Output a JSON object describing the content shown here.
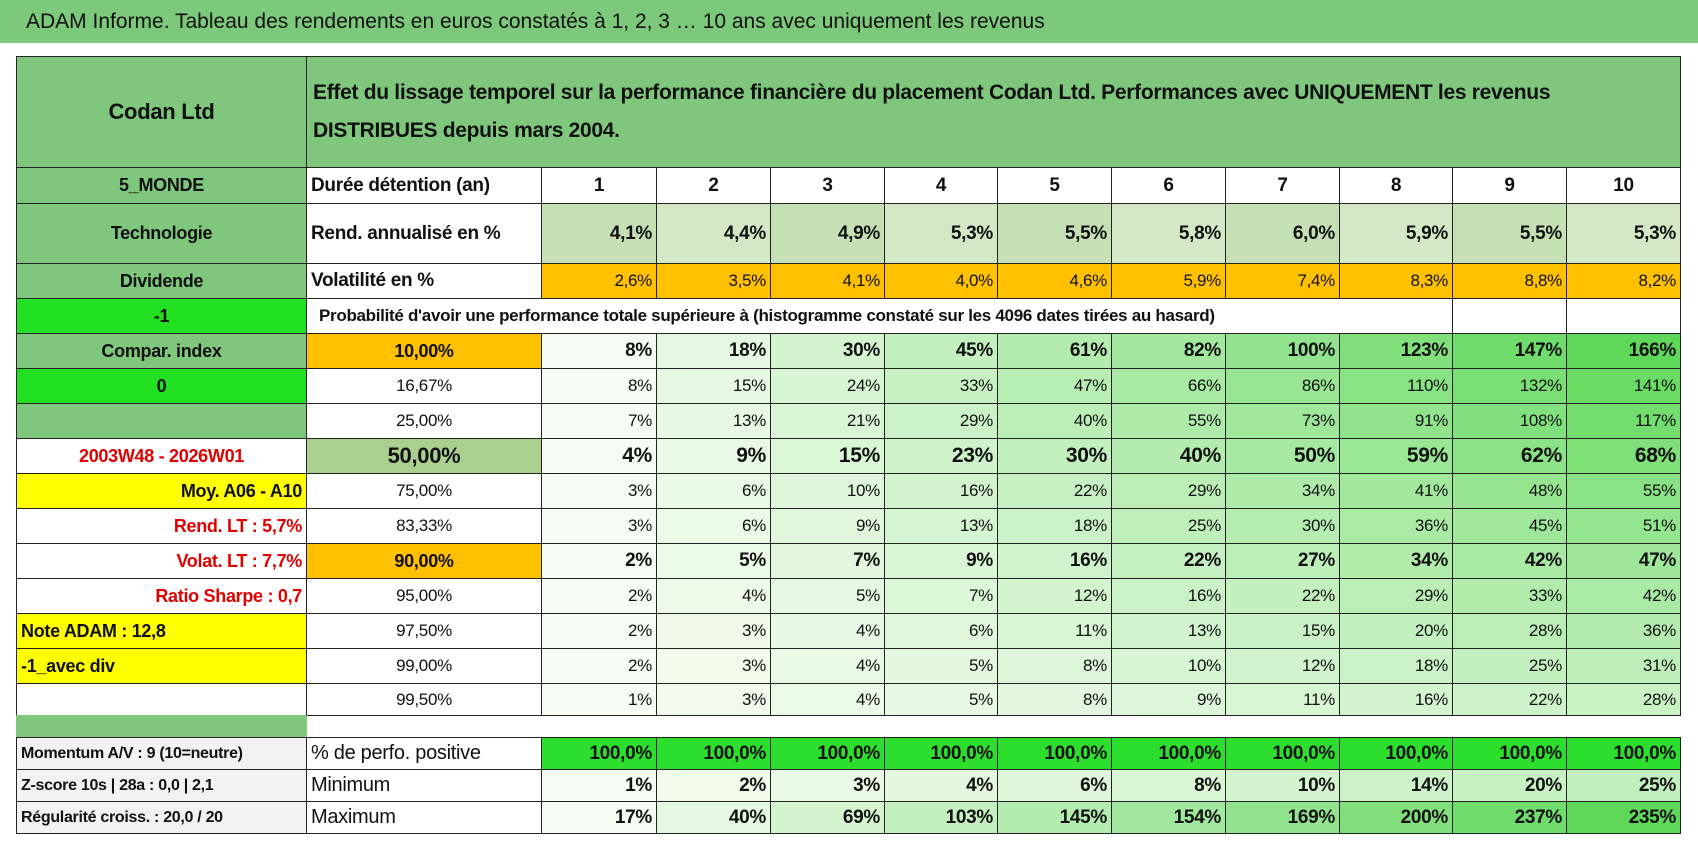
{
  "header": {
    "title": "ADAM Informe. Tableau des rendements en euros constatés à 1, 2, 3 … 10 ans avec uniquement les revenus"
  },
  "table": {
    "name": "Codan Ltd",
    "description": "Effet du lissage temporel sur la performance financière du placement Codan Ltd. Performances avec UNIQUEMENT les revenus DISTRIBUES depuis mars 2004.",
    "rows": [
      {
        "label": "5_MONDE",
        "head": "Durée détention (an)",
        "cells": [
          1,
          2,
          3,
          4,
          5,
          6,
          7,
          8,
          9,
          10
        ]
      },
      {
        "label": "Technologie",
        "head": "Rend. annualisé en %",
        "cells": [
          "4,1%",
          "4,4%",
          "4,9%",
          "5,3%",
          "5,5%",
          "5,8%",
          "6,0%",
          "5,9%",
          "5,5%",
          "5,3%"
        ]
      },
      {
        "label": "Dividende",
        "head": "Volatilité en %",
        "cells": [
          "2,6%",
          "3,5%",
          "4,1%",
          "4,0%",
          "4,6%",
          "5,9%",
          "7,4%",
          "8,3%",
          "8,8%",
          "8,2%"
        ]
      },
      {
        "label": "-1",
        "note": "Probabilité d'avoir une performance totale supérieure à (histogramme constaté sur les 4096 dates tirées au hasard)"
      },
      {
        "label": "Compar. index",
        "head": "10,00%",
        "cells": [
          "8%",
          "18%",
          "30%",
          "45%",
          "61%",
          "82%",
          "100%",
          "123%",
          "147%",
          "166%"
        ]
      },
      {
        "label": "0",
        "head": "16,67%",
        "cells": [
          "8%",
          "15%",
          "24%",
          "33%",
          "47%",
          "66%",
          "86%",
          "110%",
          "132%",
          "141%"
        ]
      },
      {
        "head": "25,00%",
        "cells": [
          "7%",
          "13%",
          "21%",
          "29%",
          "40%",
          "55%",
          "73%",
          "91%",
          "108%",
          "117%"
        ]
      },
      {
        "label": "2003W48 - 2026W01",
        "head": "50,00%",
        "cells": [
          "4%",
          "9%",
          "15%",
          "23%",
          "30%",
          "40%",
          "50%",
          "59%",
          "62%",
          "68%"
        ]
      },
      {
        "label": "Moy. A06 - A10",
        "head": "75,00%",
        "cells": [
          "3%",
          "6%",
          "10%",
          "16%",
          "22%",
          "29%",
          "34%",
          "41%",
          "48%",
          "55%"
        ]
      },
      {
        "label": "Rend. LT :   5,7%",
        "head": "83,33%",
        "cells": [
          "3%",
          "6%",
          "9%",
          "13%",
          "18%",
          "25%",
          "30%",
          "36%",
          "45%",
          "51%"
        ]
      },
      {
        "label": "Volat. LT :   7,7%",
        "head": "90,00%",
        "cells": [
          "2%",
          "5%",
          "7%",
          "9%",
          "16%",
          "22%",
          "27%",
          "34%",
          "42%",
          "47%"
        ]
      },
      {
        "label": "Ratio Sharpe :    0,7",
        "head": "95,00%",
        "cells": [
          "2%",
          "4%",
          "5%",
          "7%",
          "12%",
          "16%",
          "22%",
          "29%",
          "33%",
          "42%"
        ]
      },
      {
        "label": "Note ADAM : 12,8",
        "head": "97,50%",
        "cells": [
          "2%",
          "3%",
          "4%",
          "6%",
          "11%",
          "13%",
          "15%",
          "20%",
          "28%",
          "36%"
        ]
      },
      {
        "label": "-1_avec div",
        "head": "99,00%",
        "cells": [
          "2%",
          "3%",
          "4%",
          "5%",
          "8%",
          "10%",
          "12%",
          "18%",
          "25%",
          "31%"
        ]
      },
      {
        "head": "99,50%",
        "cells": [
          "1%",
          "3%",
          "4%",
          "5%",
          "8%",
          "9%",
          "11%",
          "16%",
          "22%",
          "28%"
        ]
      }
    ],
    "summary": [
      {
        "label": "Momentum A/V : 9 (10=neutre)",
        "head": "% de perfo. positive",
        "cells": [
          "100,0%",
          "100,0%",
          "100,0%",
          "100,0%",
          "100,0%",
          "100,0%",
          "100,0%",
          "100,0%",
          "100,0%",
          "100,0%"
        ]
      },
      {
        "label": "Z-score 10s | 28a : 0,0 | 2,1",
        "head": "Minimum",
        "cells": [
          "1%",
          "2%",
          "3%",
          "4%",
          "6%",
          "8%",
          "10%",
          "14%",
          "20%",
          "25%"
        ]
      },
      {
        "label": "Régularité croiss. : 20,0 / 20",
        "head": "Maximum",
        "cells": [
          "17%",
          "40%",
          "69%",
          "103%",
          "145%",
          "154%",
          "169%",
          "200%",
          "237%",
          "235%"
        ]
      }
    ]
  }
}
